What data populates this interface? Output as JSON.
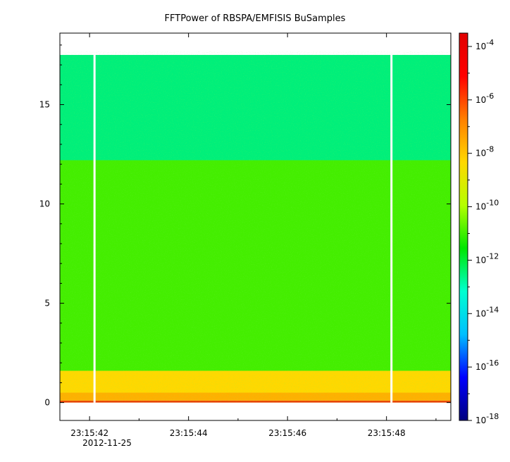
{
  "chart_data": {
    "type": "heatmap",
    "title": "FFTPower of RBSPA/EMFISIS  BuSamples",
    "xlabel": "",
    "ylabel": "",
    "x_ticks": [
      "23:15:42",
      "23:15:44",
      "23:15:46",
      "23:15:48"
    ],
    "x_date_label": "2012-11-25",
    "x_range_seconds": [
      41.4,
      49.3
    ],
    "y_ticks": [
      0,
      5,
      10,
      15
    ],
    "ylim": [
      -0.9,
      18.6
    ],
    "data_top_y": 17.5,
    "data_gaps_seconds": [
      42.1,
      48.1
    ],
    "bands": [
      {
        "from": 0.0,
        "to": 0.1,
        "level": -7.5,
        "color": "#e84400"
      },
      {
        "from": 0.1,
        "to": 0.5,
        "level": -8.5,
        "color": "#ffb000"
      },
      {
        "from": 0.5,
        "to": 1.6,
        "level": -9.0,
        "color": "#ffd800"
      },
      {
        "from": 1.6,
        "to": 12.2,
        "level": -10.3,
        "color": "#44ee00"
      },
      {
        "from": 12.2,
        "to": 17.5,
        "level": -11.0,
        "color": "#00ef7a"
      }
    ],
    "colorbar": {
      "scale": "log",
      "range": [
        -18,
        -3.5
      ],
      "tick_exponents": [
        -4,
        -6,
        -8,
        -10,
        -12,
        -14,
        -16,
        -18
      ],
      "tick_labels": [
        "10-4",
        "10-6",
        "10-8",
        "10-10",
        "10-12",
        "10-14",
        "10-16",
        "10-18"
      ],
      "colors": [
        "#00007f",
        "#0000ff",
        "#00bfff",
        "#00ffd0",
        "#00e600",
        "#b5ff00",
        "#ffd800",
        "#ff8000",
        "#ff0000",
        "#e00000"
      ]
    }
  }
}
